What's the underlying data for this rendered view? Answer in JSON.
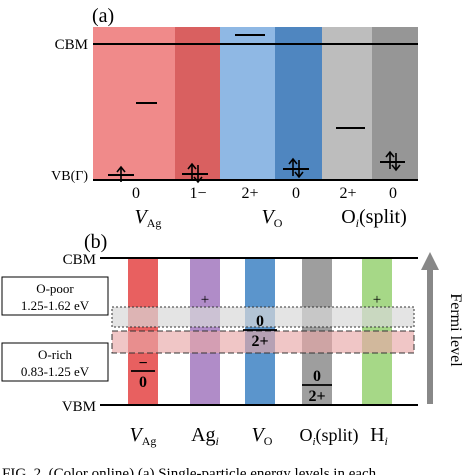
{
  "panel_a": {
    "label": "(a)",
    "cbm_label": "CBM",
    "vb_label": "VB(Γ)",
    "columns": [
      {
        "color": "#F08A8A"
      },
      {
        "color": "#D96060"
      },
      {
        "color": "#8FB8E4"
      },
      {
        "color": "#4F86C0"
      },
      {
        "color": "#BDBDBD"
      },
      {
        "color": "#969696"
      }
    ],
    "charge_labels": [
      "0",
      "1−",
      "2+",
      "0",
      "2+",
      "0"
    ],
    "defects": [
      {
        "name": "V",
        "sub": "Ag"
      },
      {
        "name": "V",
        "sub": "O"
      },
      {
        "name": "O",
        "sub": "i",
        "suffix": "(split)"
      }
    ]
  },
  "panel_b": {
    "label": "(b)",
    "cbm_label": "CBM",
    "vbm_label": "VBM",
    "fermi_label": "Fermi level",
    "o_poor": {
      "title": "O-poor",
      "range": "1.25-1.62 eV"
    },
    "o_rich": {
      "title": "O-rich",
      "range": "0.83-1.25 eV"
    },
    "columns": [
      {
        "color": "#E86060"
      },
      {
        "color": "#B08CC8"
      },
      {
        "color": "#5B95CC"
      },
      {
        "color": "#9E9E9E"
      },
      {
        "color": "#A6D887"
      }
    ],
    "plus_sign": "+",
    "transition_labels": [
      {
        "upper": "−",
        "lower": "0"
      },
      {
        "upper": "0",
        "lower": "2+"
      },
      {
        "upper": "0",
        "lower": "2+"
      }
    ],
    "defects": [
      {
        "name": "V",
        "sub": "Ag"
      },
      {
        "name": "Ag",
        "sub": "i"
      },
      {
        "name": "V",
        "sub": "O"
      },
      {
        "name": "O",
        "sub": "i",
        "suffix": "(split)"
      },
      {
        "name": "H",
        "sub": "i"
      }
    ]
  },
  "caption_fragment": "FIG. 2. (Color online) (a) Single-particle energy levels in each"
}
